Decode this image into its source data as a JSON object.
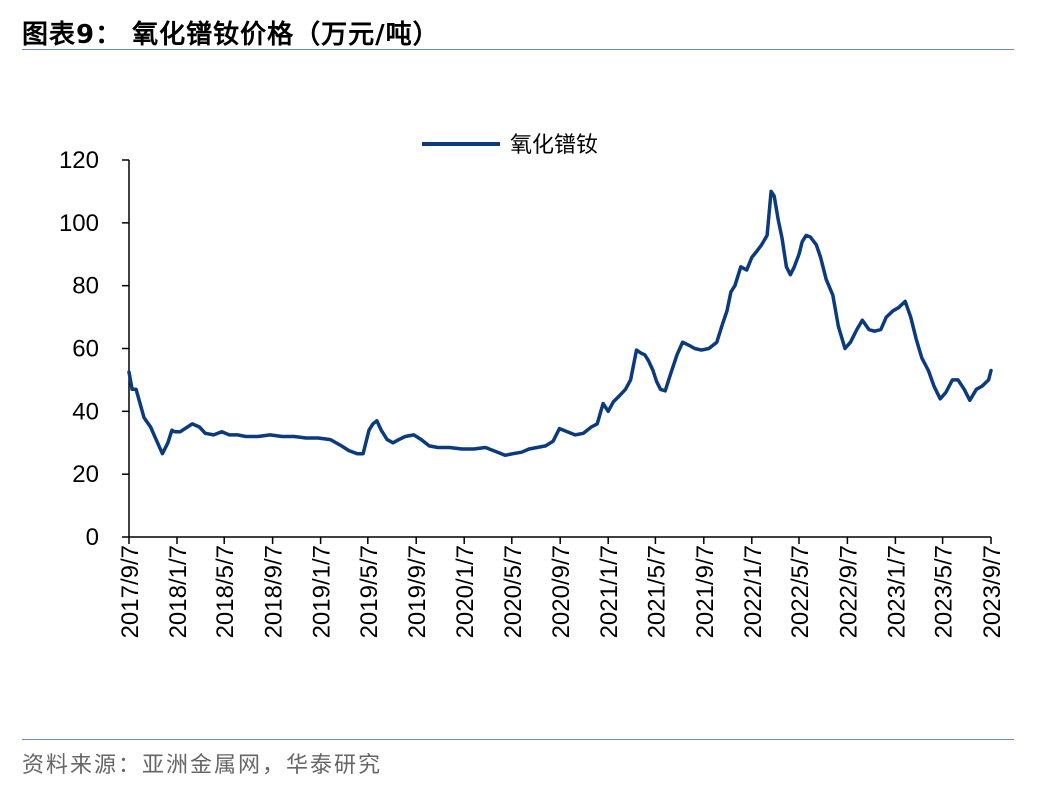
{
  "figure": {
    "title": "图表9：  氧化镨钕价格（万元/吨）",
    "source": "资料来源：亚洲金属网，华泰研究"
  },
  "colors": {
    "series": "#0b3a7d",
    "rule": "#6f8fb8",
    "axis": "#000000"
  },
  "chart_data": {
    "type": "line",
    "title": "",
    "xlabel": "",
    "ylabel": "",
    "ylim": [
      0,
      120
    ],
    "yticks": [
      0,
      20,
      40,
      60,
      80,
      100,
      120
    ],
    "xlim": [
      "2017-09-07",
      "2023-09-07"
    ],
    "xticks": [
      "2017/9/7",
      "2018/1/7",
      "2018/5/7",
      "2018/9/7",
      "2019/1/7",
      "2019/5/7",
      "2019/9/7",
      "2020/1/7",
      "2020/5/7",
      "2020/9/7",
      "2021/1/7",
      "2021/5/7",
      "2021/9/7",
      "2022/1/7",
      "2022/5/7",
      "2022/9/7",
      "2023/1/7",
      "2023/5/7",
      "2023/9/7"
    ],
    "legend": {
      "position": "top-center"
    },
    "grid": false,
    "series": [
      {
        "name": "氧化镨钕",
        "x": [
          "2017-09-07",
          "2017-09-15",
          "2017-09-25",
          "2017-10-15",
          "2017-11-01",
          "2017-11-15",
          "2017-12-01",
          "2017-12-15",
          "2017-12-25",
          "2018-01-01",
          "2018-01-15",
          "2018-02-15",
          "2018-03-05",
          "2018-03-20",
          "2018-04-10",
          "2018-05-01",
          "2018-05-20",
          "2018-06-10",
          "2018-07-01",
          "2018-08-01",
          "2018-09-01",
          "2018-10-01",
          "2018-11-01",
          "2018-12-01",
          "2019-01-01",
          "2019-02-01",
          "2019-03-01",
          "2019-03-20",
          "2019-04-10",
          "2019-04-25",
          "2019-05-10",
          "2019-05-20",
          "2019-05-30",
          "2019-06-10",
          "2019-06-25",
          "2019-07-10",
          "2019-07-25",
          "2019-08-10",
          "2019-09-01",
          "2019-09-20",
          "2019-10-10",
          "2019-11-01",
          "2019-12-01",
          "2020-01-01",
          "2020-02-01",
          "2020-03-01",
          "2020-04-01",
          "2020-04-20",
          "2020-05-10",
          "2020-06-01",
          "2020-06-20",
          "2020-07-10",
          "2020-08-01",
          "2020-08-20",
          "2020-09-05",
          "2020-09-25",
          "2020-10-15",
          "2020-11-05",
          "2020-11-25",
          "2020-12-10",
          "2020-12-25",
          "2021-01-07",
          "2021-01-20",
          "2021-02-05",
          "2021-02-20",
          "2021-03-05",
          "2021-03-20",
          "2021-04-01",
          "2021-04-10",
          "2021-04-20",
          "2021-05-01",
          "2021-05-10",
          "2021-05-20",
          "2021-06-01",
          "2021-06-15",
          "2021-07-01",
          "2021-07-15",
          "2021-08-01",
          "2021-08-15",
          "2021-09-01",
          "2021-09-20",
          "2021-10-10",
          "2021-10-25",
          "2021-11-05",
          "2021-11-15",
          "2021-11-25",
          "2021-12-10",
          "2021-12-25",
          "2022-01-07",
          "2022-01-20",
          "2022-02-01",
          "2022-02-15",
          "2022-02-25",
          "2022-03-05",
          "2022-03-15",
          "2022-03-25",
          "2022-04-05",
          "2022-04-15",
          "2022-04-25",
          "2022-05-07",
          "2022-05-15",
          "2022-05-25",
          "2022-06-05",
          "2022-06-20",
          "2022-07-01",
          "2022-07-15",
          "2022-08-01",
          "2022-08-15",
          "2022-09-01",
          "2022-09-15",
          "2022-10-01",
          "2022-10-15",
          "2022-11-01",
          "2022-11-15",
          "2022-12-01",
          "2022-12-15",
          "2023-01-01",
          "2023-01-15",
          "2023-02-01",
          "2023-02-15",
          "2023-03-01",
          "2023-03-15",
          "2023-04-01",
          "2023-04-15",
          "2023-05-01",
          "2023-05-15",
          "2023-06-01",
          "2023-06-15",
          "2023-07-01",
          "2023-07-15",
          "2023-08-01",
          "2023-08-15",
          "2023-09-01",
          "2023-09-07"
        ],
        "values": [
          52.5,
          47,
          47,
          38,
          35,
          31,
          26.5,
          30,
          34,
          33.5,
          33.5,
          36,
          35,
          33,
          32.5,
          33.5,
          32.5,
          32.5,
          32,
          32,
          32.5,
          32,
          32,
          31.5,
          31.5,
          31,
          29,
          27.5,
          26.5,
          26.5,
          34,
          36,
          37,
          34,
          31,
          30,
          31,
          32,
          32.5,
          31,
          29,
          28.5,
          28.5,
          28,
          28,
          28.5,
          27,
          26,
          26.5,
          27,
          28,
          28.5,
          29,
          30.5,
          34.5,
          33.5,
          32.5,
          33,
          35,
          36,
          42.5,
          40,
          43,
          45,
          47,
          50,
          59.5,
          58.5,
          58,
          56,
          53,
          49.5,
          47,
          46.5,
          52,
          58,
          62,
          61,
          60,
          59.5,
          60,
          62,
          68,
          72,
          78,
          80,
          86,
          85,
          89,
          91,
          93,
          96,
          110,
          108.5,
          101,
          95,
          86,
          83.5,
          86,
          90,
          94,
          96,
          95.5,
          93,
          89,
          82,
          77,
          67,
          60,
          62,
          66,
          69,
          66,
          65.5,
          66,
          70,
          72,
          73,
          75,
          70,
          63,
          57,
          53,
          48,
          44,
          46,
          50,
          50,
          47,
          43.5,
          47,
          48,
          50,
          53
        ]
      }
    ]
  }
}
